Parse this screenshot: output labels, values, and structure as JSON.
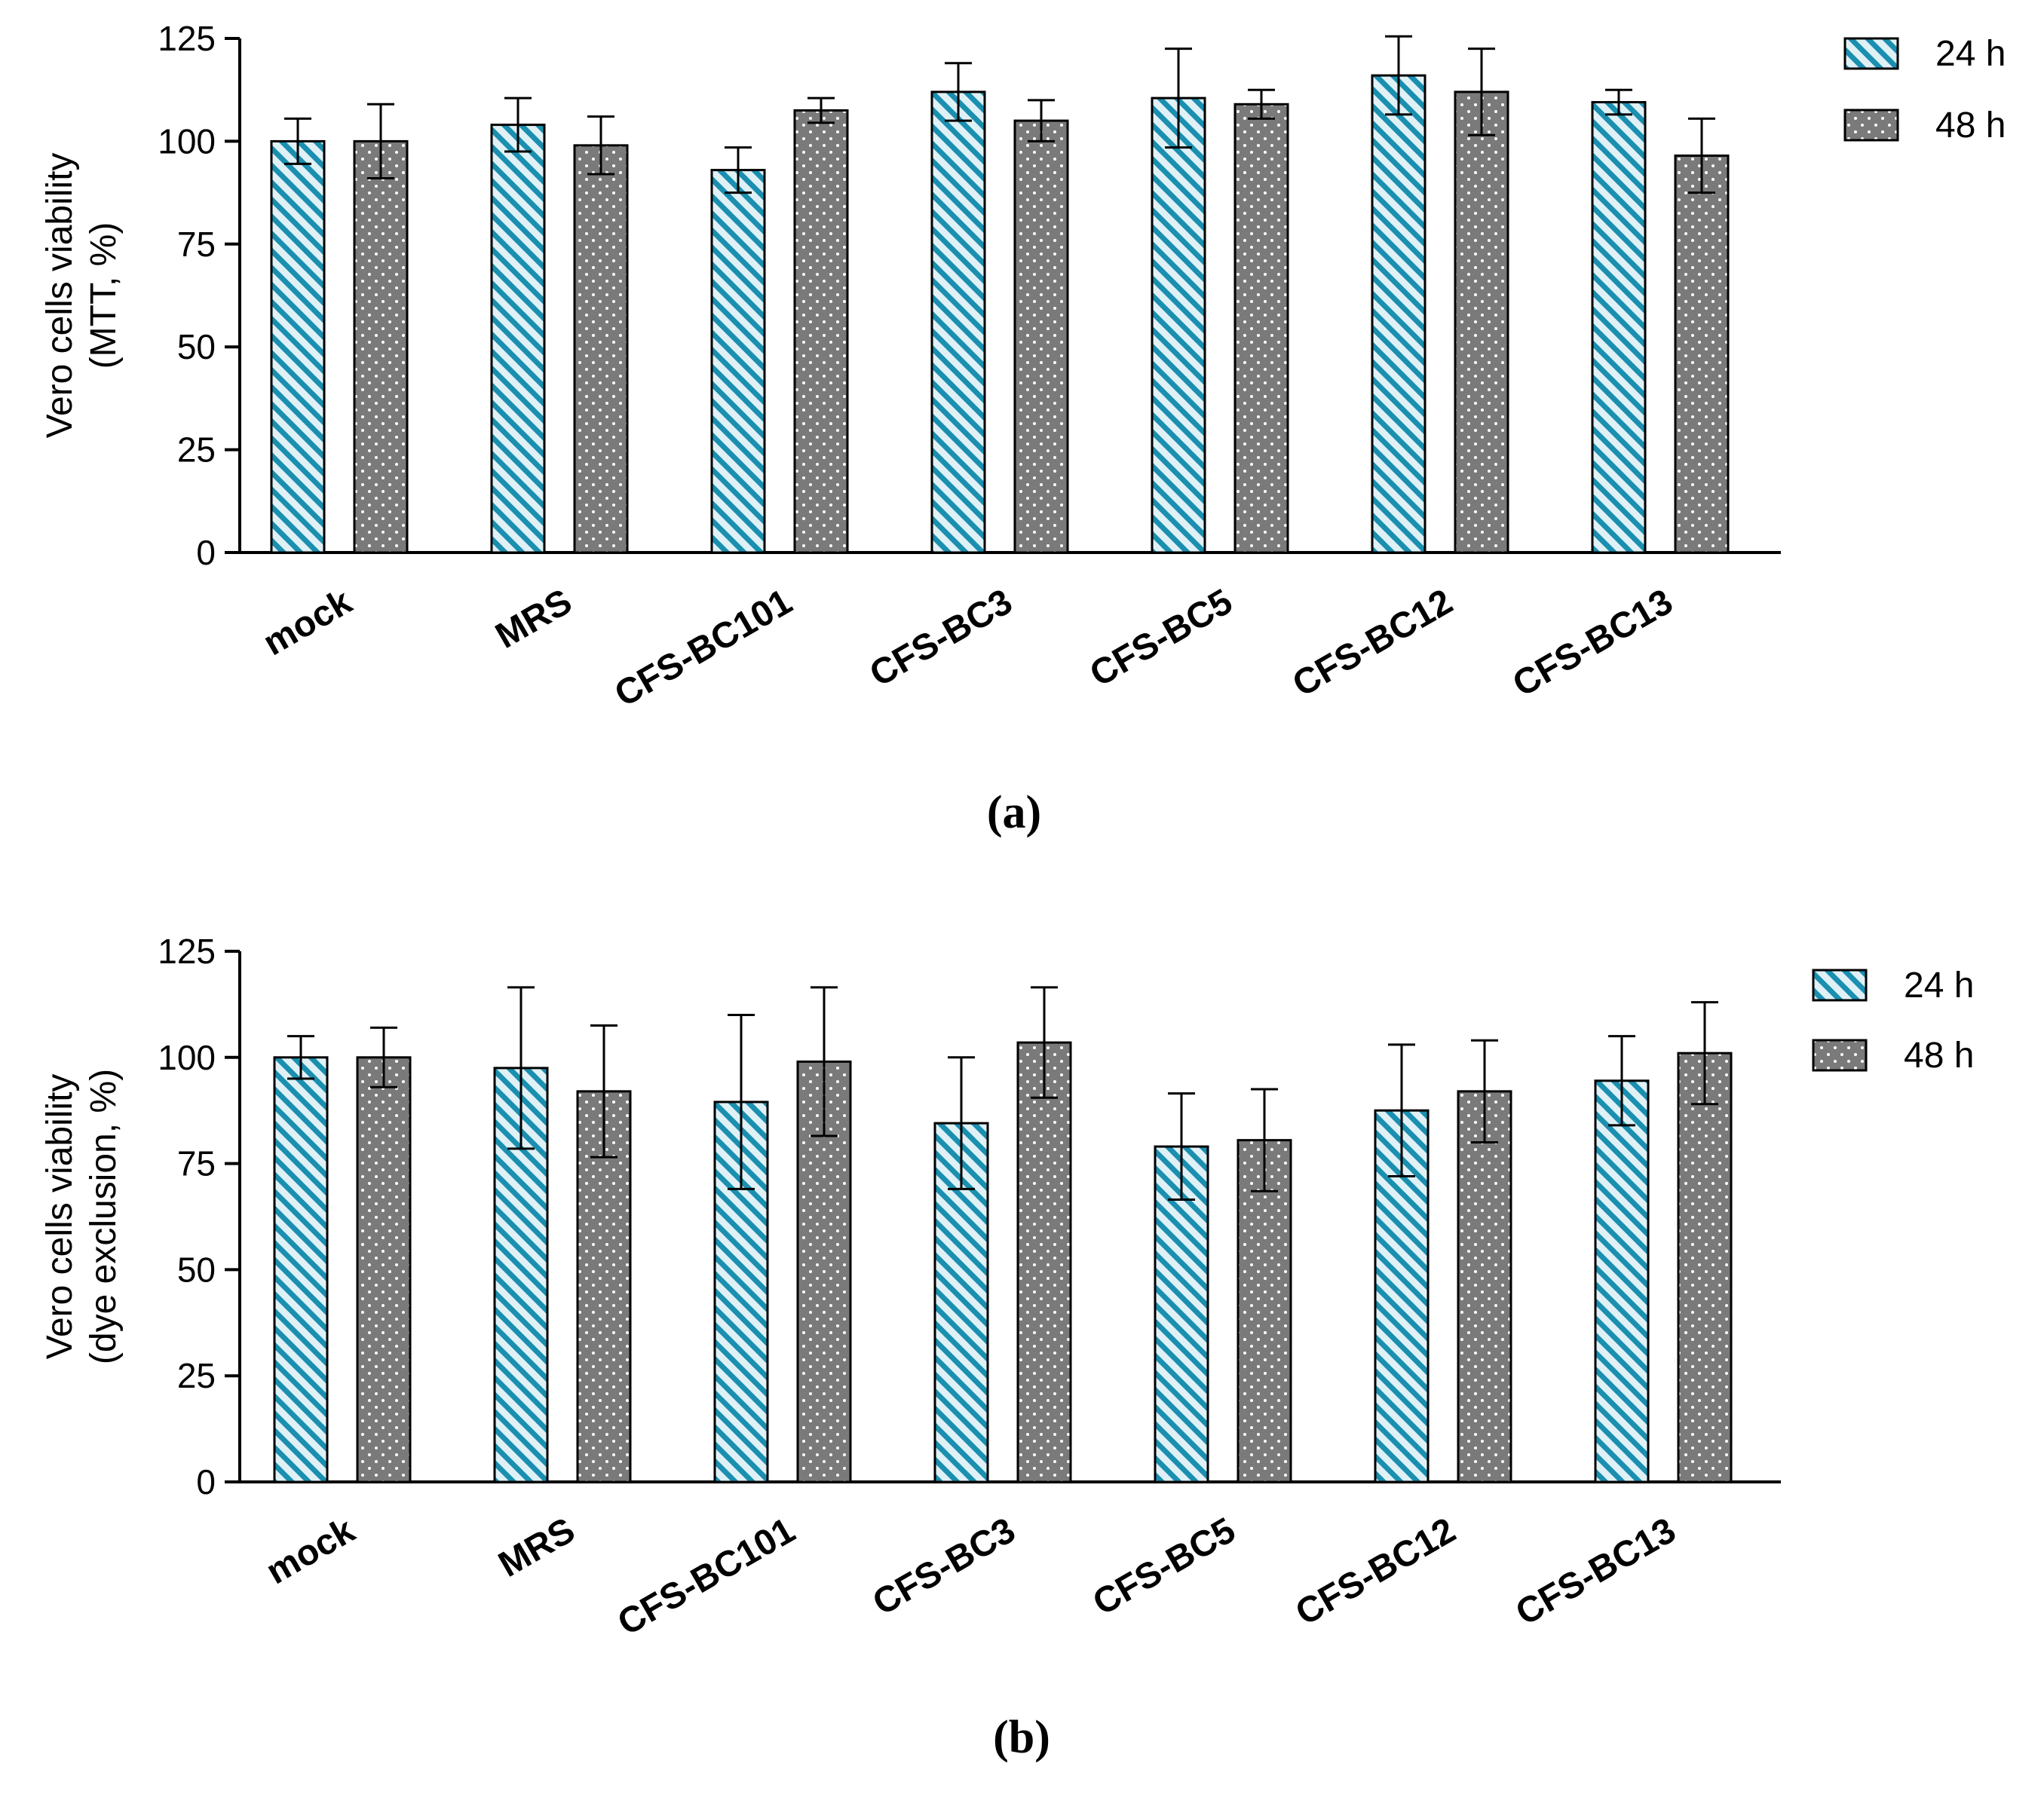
{
  "figure": {
    "panels": [
      "(a)",
      "(b)"
    ]
  },
  "colors": {
    "hatch_fg": "#1a8fb0",
    "hatch_bg": "#dff1f6",
    "dots_bg": "#7a7a7a",
    "dots_fg": "#ffffff",
    "axis": "#000000"
  },
  "chart_data": [
    {
      "type": "bar",
      "panel_label": "(a)",
      "ylabel_line1": "Vero cells viability",
      "ylabel_line2": "(MTT, %)",
      "ylim": [
        0,
        125
      ],
      "yticks": [
        0,
        25,
        50,
        75,
        100,
        125
      ],
      "categories": [
        "mock",
        "MRS",
        "CFS-BC101",
        "CFS-BC3",
        "CFS-BC5",
        "CFS-BC12",
        "CFS-BC13"
      ],
      "legend": [
        "24 h",
        "48 h"
      ],
      "series": [
        {
          "name": "24 h",
          "pattern": "hatch",
          "values": [
            100,
            104,
            93,
            112,
            110.5,
            116,
            109.5
          ],
          "errors": [
            5.5,
            6.5,
            5.5,
            7,
            12,
            9.5,
            3
          ]
        },
        {
          "name": "48 h",
          "pattern": "dots",
          "values": [
            100,
            99,
            107.5,
            105,
            109,
            112,
            96.5
          ],
          "errors": [
            9,
            7,
            3,
            5,
            3.5,
            10.5,
            9
          ]
        }
      ]
    },
    {
      "type": "bar",
      "panel_label": "(b)",
      "ylabel_line1": "Vero cells viability",
      "ylabel_line2": "(dye exclusion, %)",
      "ylim": [
        0,
        125
      ],
      "yticks": [
        0,
        25,
        50,
        75,
        100,
        125
      ],
      "categories": [
        "mock",
        "MRS",
        "CFS-BC101",
        "CFS-BC3",
        "CFS-BC5",
        "CFS-BC12",
        "CFS-BC13"
      ],
      "legend": [
        "24 h",
        "48 h"
      ],
      "series": [
        {
          "name": "24 h",
          "pattern": "hatch",
          "values": [
            100,
            97.5,
            89.5,
            84.5,
            79,
            87.5,
            94.5
          ],
          "errors": [
            5,
            19,
            20.5,
            15.5,
            12.5,
            15.5,
            10.5
          ]
        },
        {
          "name": "48 h",
          "pattern": "dots",
          "values": [
            100,
            92,
            99,
            103.5,
            80.5,
            92,
            101
          ],
          "errors": [
            7,
            15.5,
            17.5,
            13,
            12,
            12,
            12
          ]
        }
      ]
    }
  ]
}
